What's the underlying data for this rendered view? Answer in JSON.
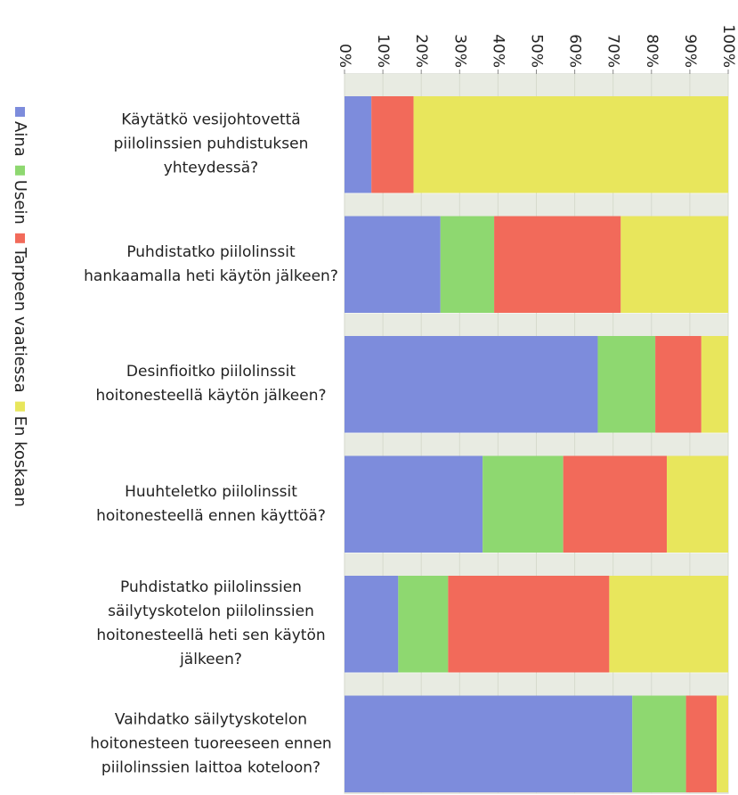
{
  "chart_data": {
    "type": "stacked_barh",
    "categories": [
      "Käytätkö vesijohtovettä piilolinssien puhdistuksen yhteydessä?",
      "Puhdistatko piilolinssit hankaamalla heti käytön jälkeen?",
      "Desinfioitko piilolinssit hoitonesteellä käytön jälkeen?",
      "Huuhteletko piilolinssit hoitonesteellä ennen käyttöä?",
      "Puhdistatko piilolinssien säilytyskotelon piilolinssien hoitonesteellä heti sen käytön jälkeen?",
      "Vaihdatko säilytyskotelon hoitonesteen tuoreeseen ennen piilolinssien laittoa koteloon?"
    ],
    "series": [
      {
        "name": "Aina",
        "color": "#7d8cdc",
        "values": [
          7,
          25,
          66,
          36,
          14,
          75
        ]
      },
      {
        "name": "Usein",
        "color": "#8ed870",
        "values": [
          0,
          14,
          15,
          21,
          13,
          14
        ]
      },
      {
        "name": "Tarpeen vaatiessa",
        "color": "#f26a5a",
        "values": [
          11,
          33,
          12,
          27,
          42,
          8
        ]
      },
      {
        "name": "En koskaan",
        "color": "#e8e65c",
        "values": [
          82,
          28,
          7,
          16,
          31,
          3
        ]
      }
    ],
    "xlim": [
      0,
      100
    ],
    "xticks": [
      {
        "value": 0,
        "label": "0%"
      },
      {
        "value": 10,
        "label": "10%"
      },
      {
        "value": 20,
        "label": "20%"
      },
      {
        "value": 30,
        "label": "30%"
      },
      {
        "value": 40,
        "label": "40%"
      },
      {
        "value": 50,
        "label": "50%"
      },
      {
        "value": 60,
        "label": "60%"
      },
      {
        "value": 70,
        "label": "70%"
      },
      {
        "value": 80,
        "label": "80%"
      },
      {
        "value": 90,
        "label": "90%"
      },
      {
        "value": 100,
        "label": "100%"
      }
    ],
    "grid": true,
    "legend": "left"
  }
}
